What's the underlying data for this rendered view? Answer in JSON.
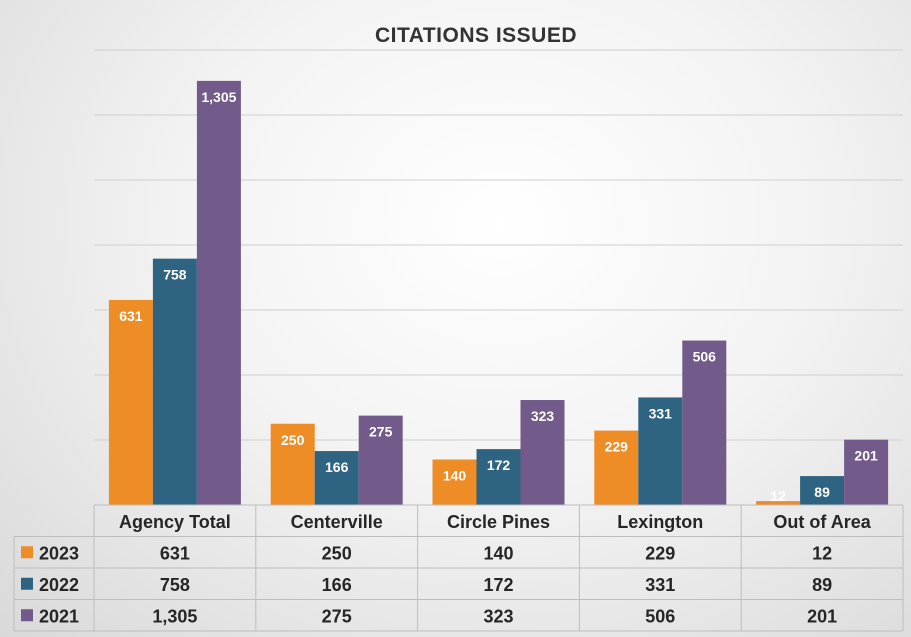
{
  "chart_data": {
    "type": "bar",
    "title": "CITATIONS ISSUED",
    "categories": [
      "Agency Total",
      "Centerville",
      "Circle Pines",
      "Lexington",
      "Out of Area"
    ],
    "series": [
      {
        "name": "2023",
        "color": "#ee8c25",
        "values": [
          631,
          250,
          140,
          229,
          12
        ],
        "labels": [
          "631",
          "250",
          "140",
          "229",
          "12"
        ]
      },
      {
        "name": "2022",
        "color": "#2e6482",
        "values": [
          758,
          166,
          172,
          331,
          89
        ],
        "labels": [
          "758",
          "166",
          "172",
          "331",
          "89"
        ]
      },
      {
        "name": "2021",
        "color": "#725a8b",
        "values": [
          1305,
          275,
          323,
          506,
          201
        ],
        "labels": [
          "1,305",
          "275",
          "323",
          "506",
          "201"
        ]
      }
    ],
    "ylim": [
      0,
      1400
    ],
    "grid": true,
    "legend": "data table",
    "data_table": true
  }
}
